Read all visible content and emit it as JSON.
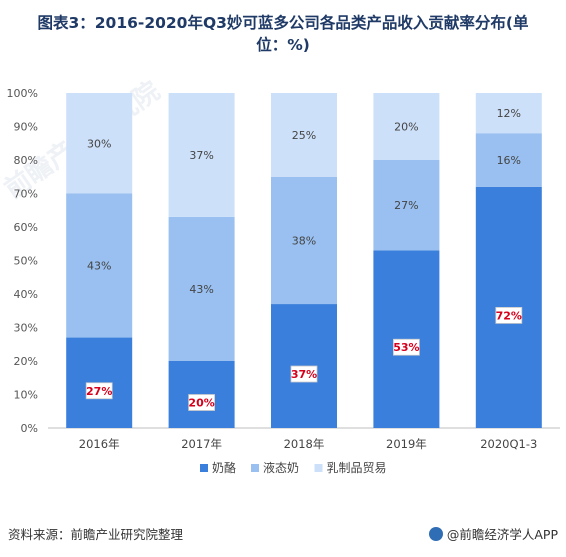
{
  "title_line1": "图表3：2016-2020年Q3妙可蓝多公司各品类产品收入贡献率分布(单",
  "title_line2": "位：%)",
  "source": "资料来源：前瞻产业研究院整理",
  "brand": "@前瞻经济学人APP",
  "watermark": "前瞻产业研究院",
  "colors": {
    "milk": "#3a7fdc",
    "liquid": "#99c0f0",
    "trade": "#cde0f9",
    "label_red": "#d6001c"
  },
  "chart_data": {
    "type": "bar",
    "stacked": true,
    "categories": [
      "2016年",
      "2017年",
      "2018年",
      "2019年",
      "2020Q1-3"
    ],
    "series": [
      {
        "name": "奶酪",
        "values": [
          27,
          20,
          37,
          53,
          72
        ],
        "labels": [
          "27%",
          "20%",
          "37%",
          "53%",
          "72%"
        ],
        "color": "#3a7fdc"
      },
      {
        "name": "液态奶",
        "values": [
          43,
          43,
          38,
          27,
          16
        ],
        "labels": [
          "43%",
          "43%",
          "38%",
          "27%",
          "16%"
        ],
        "color": "#99c0f0"
      },
      {
        "name": "乳制品贸易",
        "values": [
          30,
          37,
          25,
          20,
          12
        ],
        "labels": [
          "30%",
          "37%",
          "25%",
          "20%",
          "12%"
        ],
        "color": "#cde0f9"
      }
    ],
    "yticks": [
      "0%",
      "10%",
      "20%",
      "30%",
      "40%",
      "50%",
      "60%",
      "70%",
      "80%",
      "90%",
      "100%"
    ],
    "ylim": [
      0,
      100
    ],
    "legend_position": "bottom-center",
    "grid": false
  }
}
